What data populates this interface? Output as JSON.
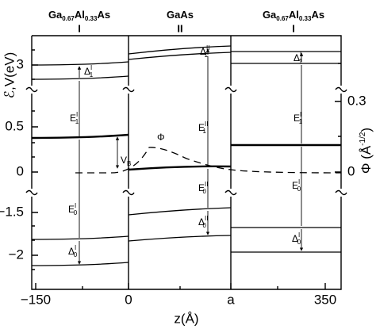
{
  "regions": [
    {
      "parts": [
        "Ga",
        "0.67",
        "Al",
        "0.33",
        "As"
      ],
      "number": "I"
    },
    {
      "parts": [
        "GaAs"
      ],
      "number": "II"
    },
    {
      "parts": [
        "Ga",
        "0.67",
        "Al",
        "0.33",
        "As"
      ],
      "number": "I"
    }
  ],
  "x_axis": {
    "label": "z(Å)",
    "ticks": [
      "−150",
      "0",
      "a",
      "350"
    ]
  },
  "left_axis": {
    "label": "ℰ,V(eV)",
    "ticks": [
      "3",
      "0.5",
      "0",
      "−1.5",
      "−2"
    ]
  },
  "right_axis": {
    "label_parts": [
      "Φ (Å",
      "-1/2",
      ")"
    ],
    "ticks": [
      "0.3",
      "0"
    ]
  },
  "annotations": [
    {
      "main": "Δ",
      "sub": "1",
      "sup": "I"
    },
    {
      "main": "E",
      "sub": "1",
      "sup": "I"
    },
    {
      "main": "E",
      "sub": "0",
      "sup": "I"
    },
    {
      "main": "Δ",
      "sub": "0",
      "sup": "I"
    },
    {
      "main": "Δ",
      "sub": "1",
      "sup": "II"
    },
    {
      "main": "E",
      "sub": "1",
      "sup": "II"
    },
    {
      "main": "E",
      "sub": "0",
      "sup": "II"
    },
    {
      "main": "Δ",
      "sub": "0",
      "sup": "II"
    },
    {
      "main": "Δ",
      "sub": "1",
      "sup": "I"
    },
    {
      "main": "E",
      "sub": "1",
      "sup": "I"
    },
    {
      "main": "E",
      "sub": "0",
      "sup": "I"
    },
    {
      "main": "Δ",
      "sub": "0",
      "sup": "I"
    },
    {
      "main": "V",
      "sub": "B",
      "sup": null
    },
    {
      "main": "Φ",
      "sub": null,
      "sup": null
    }
  ]
}
